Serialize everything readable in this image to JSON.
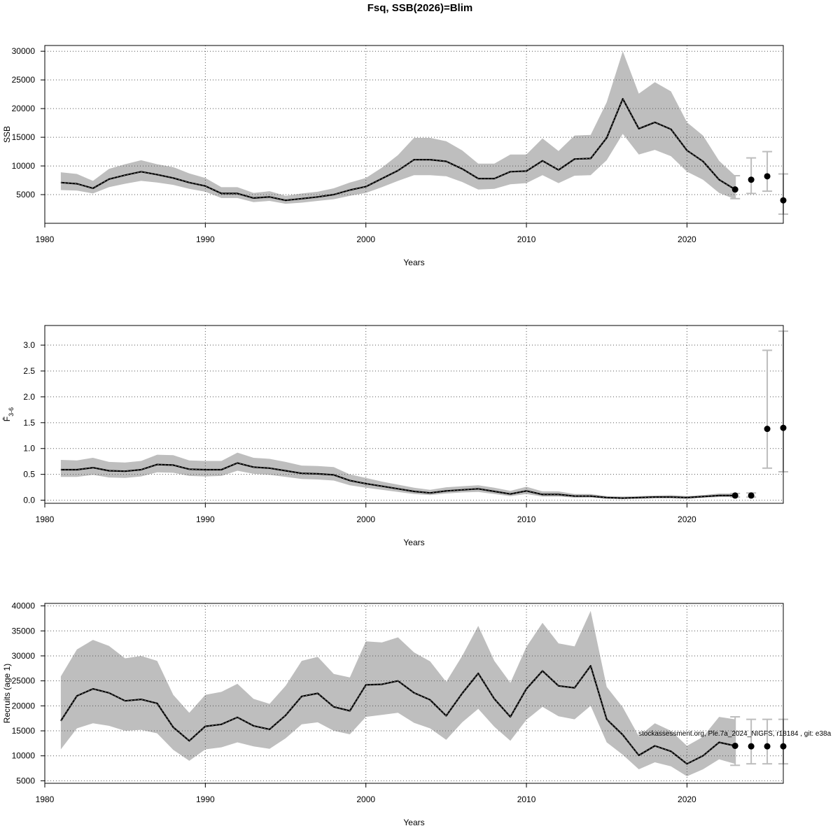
{
  "title": "Fsq, SSB(2026)=Blim",
  "footnote": "stockassessment.org, Ple.7a_2024_NIGFS, r18184 , git: e38a",
  "colors": {
    "band": "#bebebe",
    "line": "#000000",
    "grid": "#555555",
    "errorbar": "#bdbdbd"
  },
  "chart_data": [
    {
      "type": "line",
      "panel": "ssb",
      "xlabel": "Years",
      "ylabel": "SSB",
      "xlim": [
        1980,
        2026
      ],
      "ylim": [
        0,
        31000
      ],
      "xticks": [
        1980,
        1990,
        2000,
        2010,
        2020
      ],
      "yticks": [
        5000,
        10000,
        15000,
        20000,
        25000,
        30000
      ],
      "grid": true,
      "x": [
        1981,
        1982,
        1983,
        1984,
        1985,
        1986,
        1987,
        1988,
        1989,
        1990,
        1991,
        1992,
        1993,
        1994,
        1995,
        1996,
        1997,
        1998,
        1999,
        2000,
        2001,
        2002,
        2003,
        2004,
        2005,
        2006,
        2007,
        2008,
        2009,
        2010,
        2011,
        2012,
        2013,
        2014,
        2015,
        2016,
        2017,
        2018,
        2019,
        2020,
        2021,
        2022,
        2023
      ],
      "estimate": [
        7100,
        6900,
        6100,
        7700,
        8400,
        9000,
        8500,
        7900,
        7100,
        6500,
        5200,
        5200,
        4400,
        4600,
        4000,
        4300,
        4600,
        5000,
        5800,
        6400,
        7800,
        9200,
        11100,
        11100,
        10800,
        9500,
        7800,
        7800,
        9000,
        9100,
        10900,
        9300,
        11200,
        11300,
        14900,
        21700,
        16500,
        17600,
        16400,
        12700,
        10800,
        7600,
        5900
      ],
      "lower": [
        5800,
        5700,
        5200,
        6300,
        6900,
        7400,
        7100,
        6700,
        6000,
        5500,
        4400,
        4400,
        3700,
        3900,
        3400,
        3600,
        3900,
        4200,
        4800,
        5300,
        6300,
        7400,
        8400,
        8400,
        8200,
        7200,
        5900,
        6000,
        6800,
        7000,
        8400,
        7000,
        8300,
        8400,
        11000,
        15600,
        12000,
        12800,
        11700,
        9000,
        7600,
        5300,
        4200
      ],
      "upper": [
        8900,
        8600,
        7400,
        9500,
        10300,
        11000,
        10300,
        9800,
        8700,
        7900,
        6300,
        6300,
        5300,
        5600,
        4800,
        5200,
        5500,
        6100,
        7100,
        7900,
        9700,
        11900,
        14900,
        14900,
        14300,
        12700,
        10400,
        10400,
        12000,
        12000,
        14800,
        12600,
        15300,
        15400,
        21100,
        30000,
        22600,
        24600,
        23000,
        17600,
        15300,
        10900,
        8300
      ],
      "forecast": {
        "x": [
          2023,
          2024,
          2025,
          2026
        ],
        "value": [
          5900,
          7600,
          8200,
          4000
        ],
        "lower": [
          4300,
          5200,
          5600,
          1600
        ],
        "upper": [
          8300,
          11400,
          12500,
          8600
        ]
      }
    },
    {
      "type": "line",
      "panel": "fbar",
      "xlabel": "Years",
      "ylabel": "F̄",
      "ylabel_sub": "3-6",
      "xlim": [
        1980,
        2026
      ],
      "ylim": [
        -0.06,
        3.38
      ],
      "xticks": [
        1980,
        1990,
        2000,
        2010,
        2020
      ],
      "yticks": [
        0.0,
        0.5,
        1.0,
        1.5,
        2.0,
        2.5,
        3.0
      ],
      "ytick_labels": [
        "0.0",
        "0.5",
        "1.0",
        "1.5",
        "2.0",
        "2.5",
        "3.0"
      ],
      "grid": true,
      "x": [
        1981,
        1982,
        1983,
        1984,
        1985,
        1986,
        1987,
        1988,
        1989,
        1990,
        1991,
        1992,
        1993,
        1994,
        1995,
        1996,
        1997,
        1998,
        1999,
        2000,
        2001,
        2002,
        2003,
        2004,
        2005,
        2006,
        2007,
        2008,
        2009,
        2010,
        2011,
        2012,
        2013,
        2014,
        2015,
        2016,
        2017,
        2018,
        2019,
        2020,
        2021,
        2022,
        2023
      ],
      "estimate": [
        0.59,
        0.59,
        0.63,
        0.57,
        0.56,
        0.59,
        0.69,
        0.68,
        0.6,
        0.59,
        0.59,
        0.72,
        0.64,
        0.62,
        0.57,
        0.52,
        0.51,
        0.49,
        0.38,
        0.32,
        0.27,
        0.22,
        0.17,
        0.14,
        0.18,
        0.2,
        0.22,
        0.17,
        0.12,
        0.18,
        0.11,
        0.11,
        0.08,
        0.08,
        0.05,
        0.04,
        0.05,
        0.06,
        0.06,
        0.05,
        0.07,
        0.09,
        0.09
      ],
      "lower": [
        0.45,
        0.45,
        0.49,
        0.44,
        0.43,
        0.46,
        0.54,
        0.53,
        0.47,
        0.46,
        0.47,
        0.57,
        0.51,
        0.49,
        0.45,
        0.41,
        0.4,
        0.38,
        0.29,
        0.24,
        0.2,
        0.16,
        0.12,
        0.1,
        0.13,
        0.15,
        0.16,
        0.12,
        0.08,
        0.12,
        0.07,
        0.07,
        0.05,
        0.05,
        0.03,
        0.03,
        0.03,
        0.04,
        0.04,
        0.03,
        0.05,
        0.06,
        0.06
      ],
      "upper": [
        0.78,
        0.77,
        0.82,
        0.74,
        0.73,
        0.76,
        0.88,
        0.87,
        0.77,
        0.76,
        0.76,
        0.92,
        0.82,
        0.8,
        0.74,
        0.67,
        0.66,
        0.64,
        0.5,
        0.43,
        0.36,
        0.3,
        0.24,
        0.2,
        0.25,
        0.27,
        0.29,
        0.24,
        0.18,
        0.26,
        0.17,
        0.17,
        0.12,
        0.12,
        0.08,
        0.07,
        0.08,
        0.09,
        0.1,
        0.08,
        0.1,
        0.13,
        0.13
      ],
      "forecast": {
        "x": [
          2023,
          2024,
          2025,
          2026
        ],
        "value": [
          0.09,
          0.09,
          1.38,
          1.4
        ],
        "lower": [
          0.06,
          0.06,
          0.62,
          0.55
        ],
        "upper": [
          0.13,
          0.14,
          2.9,
          3.27
        ]
      }
    },
    {
      "type": "line",
      "panel": "recruitment",
      "xlabel": "Years",
      "ylabel": "Recruits (age 1)",
      "xlim": [
        1980,
        2026
      ],
      "ylim": [
        4500,
        40500
      ],
      "xticks": [
        1980,
        1990,
        2000,
        2010,
        2020
      ],
      "yticks": [
        5000,
        10000,
        15000,
        20000,
        25000,
        30000,
        35000,
        40000
      ],
      "grid": true,
      "x": [
        1981,
        1982,
        1983,
        1984,
        1985,
        1986,
        1987,
        1988,
        1989,
        1990,
        1991,
        1992,
        1993,
        1994,
        1995,
        1996,
        1997,
        1998,
        1999,
        2000,
        2001,
        2002,
        2003,
        2004,
        2005,
        2006,
        2007,
        2008,
        2009,
        2010,
        2011,
        2012,
        2013,
        2014,
        2015,
        2016,
        2017,
        2018,
        2019,
        2020,
        2021,
        2022,
        2023
      ],
      "estimate": [
        17000,
        22000,
        23400,
        22600,
        21000,
        21300,
        20500,
        15700,
        13000,
        15900,
        16300,
        17700,
        16000,
        15300,
        18100,
        21900,
        22500,
        19800,
        19000,
        24200,
        24300,
        25000,
        22600,
        21200,
        18000,
        22500,
        26500,
        21400,
        17800,
        23400,
        27000,
        24000,
        23600,
        28000,
        17300,
        14200,
        10100,
        12000,
        10900,
        8400,
        10000,
        12700,
        12000
      ],
      "lower": [
        11300,
        15500,
        16500,
        16000,
        15000,
        15200,
        14500,
        11200,
        9000,
        11300,
        11700,
        12700,
        11900,
        11400,
        13500,
        16300,
        16700,
        15000,
        14300,
        17800,
        18200,
        18600,
        16600,
        15500,
        13200,
        16700,
        19400,
        15800,
        13000,
        17200,
        19800,
        17900,
        17300,
        20000,
        12700,
        10200,
        7300,
        8700,
        7900,
        5900,
        7300,
        9300,
        8400
      ],
      "upper": [
        25900,
        31300,
        33200,
        32000,
        29500,
        30000,
        29000,
        22200,
        18600,
        22200,
        22800,
        24400,
        21400,
        20400,
        24000,
        29000,
        29800,
        26400,
        25700,
        32900,
        32700,
        33700,
        30700,
        28900,
        24800,
        30000,
        36000,
        29000,
        24600,
        31800,
        36600,
        32500,
        31900,
        39000,
        23800,
        19700,
        13900,
        16500,
        15000,
        12000,
        13800,
        17800,
        17300
      ],
      "forecast": {
        "x": [
          2023,
          2024,
          2025,
          2026
        ],
        "value": [
          12000,
          11900,
          11900,
          11900
        ],
        "lower": [
          8100,
          8400,
          8400,
          8400
        ],
        "upper": [
          17800,
          17300,
          17300,
          17300
        ]
      }
    }
  ]
}
